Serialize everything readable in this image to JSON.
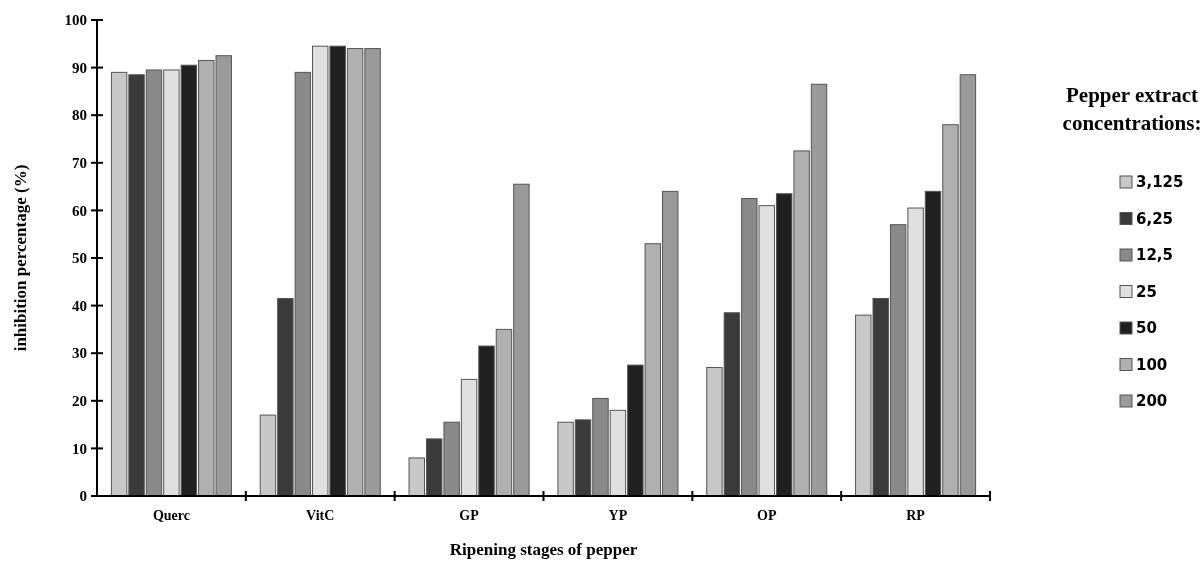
{
  "chart_data": {
    "type": "bar",
    "xlabel": "Ripening stages of pepper",
    "ylabel": "inhibition percentage (%)",
    "legend_title": "Pepper extract concentrations:",
    "categories": [
      "Querc",
      "VitC",
      "GP",
      "YP",
      "OP",
      "RP"
    ],
    "series": [
      {
        "name": "3,125",
        "color": "#c8c8c8",
        "values": [
          89,
          17,
          8,
          15.5,
          27,
          38
        ]
      },
      {
        "name": "6,25",
        "color": "#3a3a3a",
        "values": [
          88.5,
          41.5,
          12,
          16,
          38.5,
          41.5
        ]
      },
      {
        "name": "12,5",
        "color": "#8a8a8a",
        "values": [
          89.5,
          89,
          15.5,
          20.5,
          62.5,
          57
        ]
      },
      {
        "name": "25",
        "color": "#e0e0e0",
        "values": [
          89.5,
          94.5,
          24.5,
          18,
          61,
          60.5
        ]
      },
      {
        "name": "50",
        "color": "#202020",
        "values": [
          90.5,
          94.5,
          31.5,
          27.5,
          63.5,
          64
        ]
      },
      {
        "name": "100",
        "color": "#b0b0b0",
        "values": [
          91.5,
          94,
          35,
          53,
          72.5,
          78
        ]
      },
      {
        "name": "200",
        "color": "#9a9a9a",
        "values": [
          92.5,
          94,
          65.5,
          64,
          86.5,
          88.5
        ]
      }
    ],
    "ylim": [
      0,
      100
    ],
    "yticks": [
      0,
      10,
      20,
      30,
      40,
      50,
      60,
      70,
      80,
      90,
      100
    ],
    "grid": false,
    "legend": "right"
  }
}
